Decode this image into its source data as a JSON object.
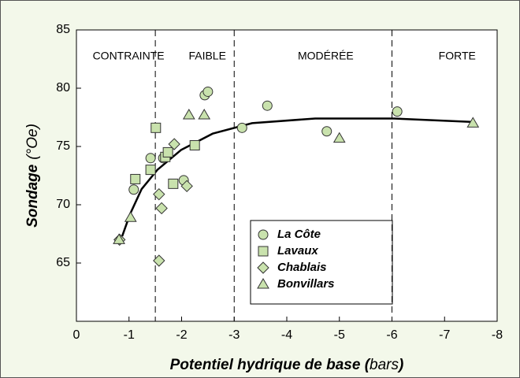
{
  "chart_data": {
    "type": "scatter",
    "ylabel": "Sondage",
    "ylabel_unit": "(°Oe)",
    "xlabel": "Potentiel hydrique de base (",
    "xlabel_unit": "bars",
    "xlabel_end": ")",
    "xlim": [
      0,
      -8
    ],
    "xticks": [
      0,
      -1,
      -2,
      -3,
      -4,
      -5,
      -6,
      -7,
      -8
    ],
    "ylim": [
      60,
      85
    ],
    "yticks": [
      65,
      70,
      75,
      80,
      85
    ],
    "dividers": [
      -1.5,
      -3,
      -6
    ],
    "regions": [
      "CONTRAINTE",
      "FAIBLE",
      "MODÉRÉE",
      "FORTE"
    ],
    "series": [
      {
        "name": "La Côte",
        "marker": "circle",
        "color": "#c9e2ad",
        "x": [
          -1.09,
          -1.41,
          -1.65,
          -2.04,
          -2.44,
          -2.5,
          -3.15,
          -3.63,
          -4.76,
          -6.1
        ],
        "values": [
          71.3,
          74.0,
          74.0,
          72.1,
          79.4,
          79.7,
          76.6,
          78.5,
          76.3,
          78.0
        ]
      },
      {
        "name": "Lavaux",
        "marker": "square",
        "color": "#c9e2ad",
        "x": [
          -1.12,
          -1.41,
          -1.51,
          -1.69,
          -1.74,
          -1.84,
          -2.25
        ],
        "values": [
          72.2,
          73.0,
          76.6,
          74.1,
          74.5,
          71.8,
          75.1
        ]
      },
      {
        "name": "Chablais",
        "marker": "diamond",
        "color": "#c9e2ad",
        "x": [
          -0.82,
          -1.57,
          -1.62,
          -1.57,
          -1.86,
          -2.1
        ],
        "values": [
          67.0,
          70.9,
          69.7,
          65.2,
          75.2,
          71.6
        ]
      },
      {
        "name": "Bonvillars",
        "marker": "triangle",
        "color": "#c9e2ad",
        "x": [
          -0.81,
          -1.03,
          -2.14,
          -2.43,
          -5.0,
          -7.54
        ],
        "values": [
          67.0,
          68.9,
          77.7,
          77.7,
          75.7,
          77.0
        ]
      }
    ],
    "fit": {
      "color": "#000000",
      "x": [
        -0.87,
        -1.02,
        -1.24,
        -1.54,
        -1.99,
        -2.59,
        -3.34,
        -4.54,
        -6.04,
        -7.54
      ],
      "values": [
        67.3,
        69.2,
        71.35,
        73.0,
        74.7,
        76.1,
        77.0,
        77.4,
        77.4,
        77.1
      ]
    }
  }
}
